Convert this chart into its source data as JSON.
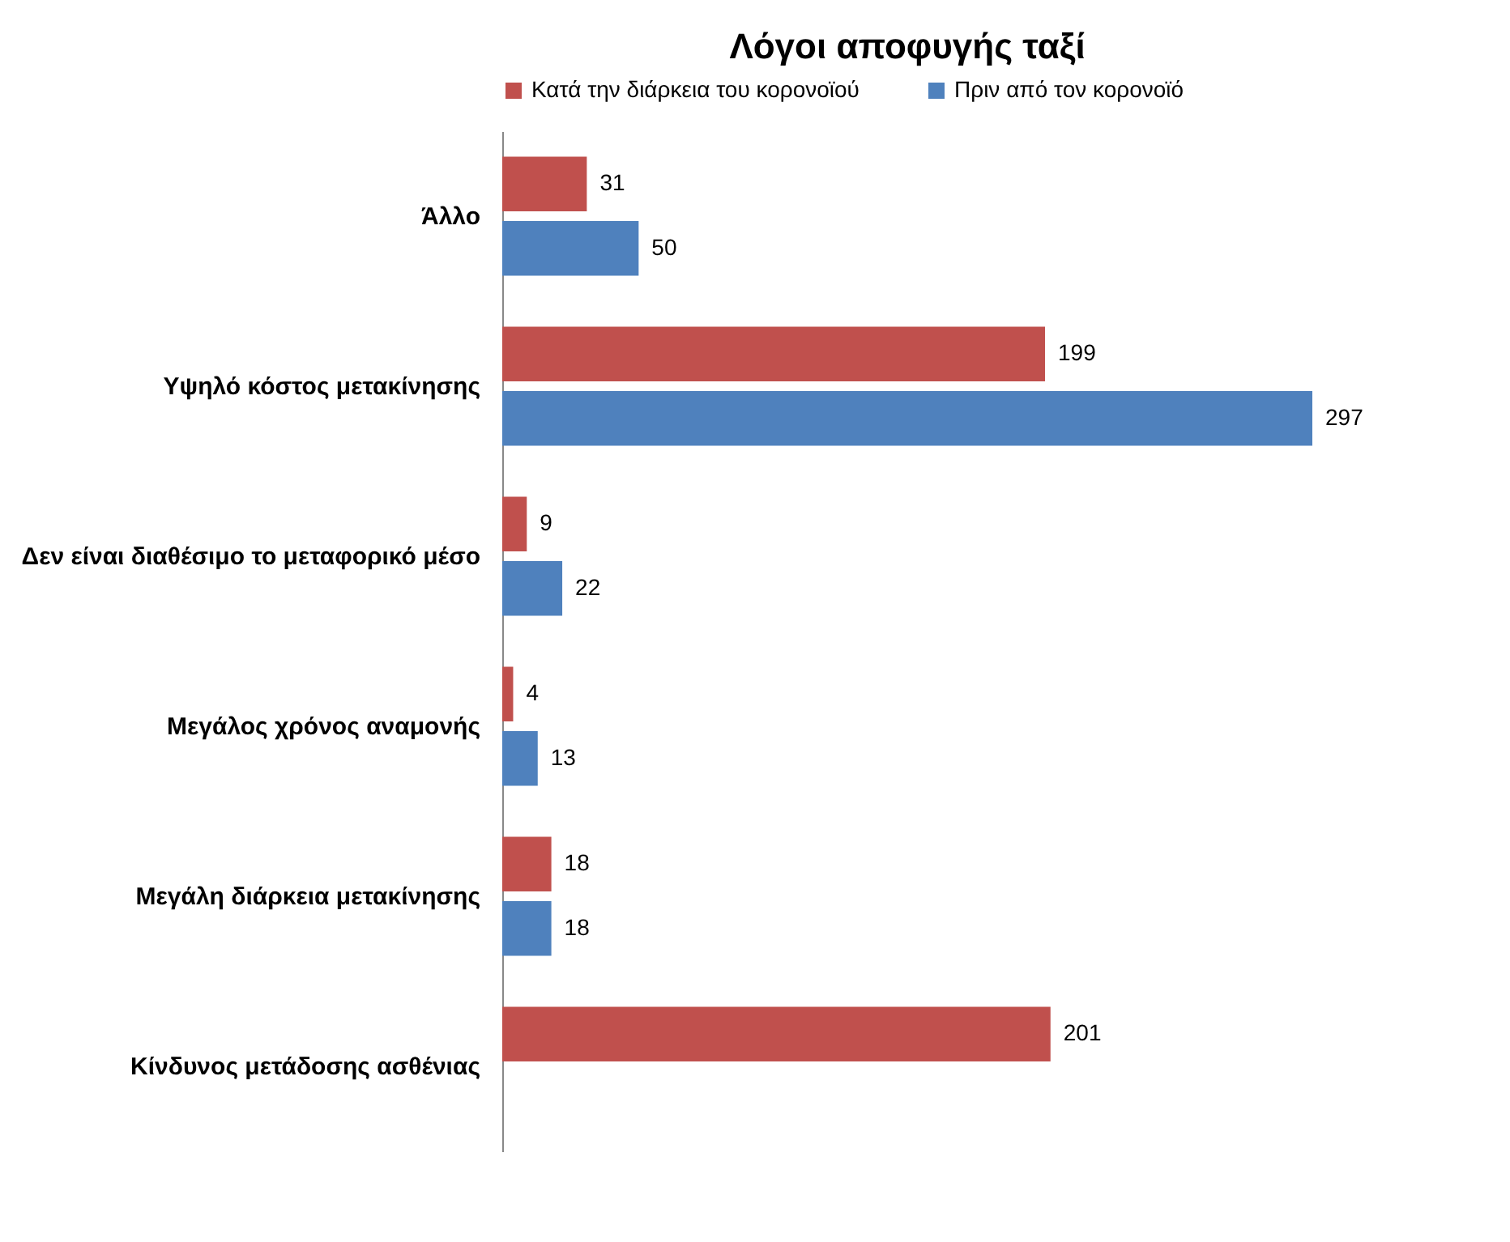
{
  "chart_data": {
    "type": "bar",
    "orientation": "horizontal",
    "title": "Λόγοι αποφυγής ταξί",
    "categories": [
      "Άλλο",
      "Υψηλό κόστος μετακίνησης",
      "Δεν είναι διαθέσιμο το μεταφορικό μέσο",
      "Μεγάλος χρόνος αναμονής",
      "Μεγάλη διάρκεια μετακίνησης",
      "Κίνδυνος μετάδοσης ασθένιας"
    ],
    "series": [
      {
        "name": "Κατά την διάρκεια του κορονοϊού",
        "color": "#c0504d",
        "values": [
          31,
          199,
          9,
          4,
          18,
          201
        ]
      },
      {
        "name": "Πριν από τον κορονοϊό",
        "color": "#4f81bd",
        "values": [
          50,
          297,
          22,
          13,
          18,
          null
        ]
      }
    ],
    "data_labels": true,
    "legend": "top",
    "tick_labels": "y"
  }
}
